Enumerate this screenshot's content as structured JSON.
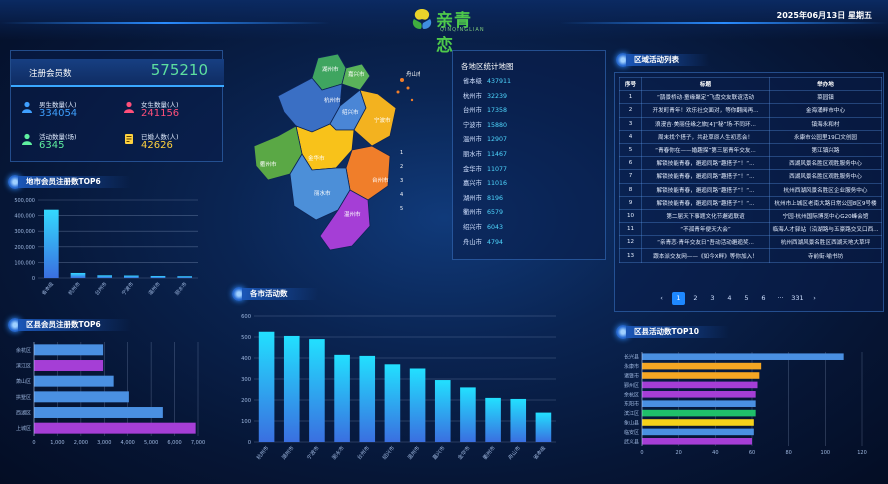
{
  "header": {
    "logo_text": "亲青恋",
    "logo_sub": "QINQINGLIAN",
    "datetime": "2025年06月13日 星期五"
  },
  "members": {
    "label": "注册会员数",
    "total": "575210",
    "stats": [
      {
        "label": "男生数量(人)",
        "value": "334054",
        "color": "#3fa0ff",
        "icon": "male-user-icon"
      },
      {
        "label": "女生数量(人)",
        "value": "241156",
        "color": "#ff4f7a",
        "icon": "female-user-icon"
      },
      {
        "label": "活动数量(场)",
        "value": "6345",
        "color": "#5ff0a0",
        "icon": "activity-user-icon"
      },
      {
        "label": "已婚人数(人)",
        "value": "42626",
        "color": "#ffd23f",
        "icon": "married-doc-icon"
      }
    ]
  },
  "sections": {
    "city_members": "地市会员注册数TOP6",
    "district_members": "区县会员注册数TOP6",
    "city_activity": "各市活动数",
    "region_activity_list": "区域活动列表",
    "district_activity": "区县活动数TOP10"
  },
  "map": {
    "title": "各地区统计地图",
    "cities": [
      {
        "name": "湖州市",
        "color": "#3fa560"
      },
      {
        "name": "嘉兴市",
        "color": "#5ab35a"
      },
      {
        "name": "杭州市",
        "color": "#3a6fc4"
      },
      {
        "name": "绍兴市",
        "color": "#4a86d6"
      },
      {
        "name": "宁波市",
        "color": "#f3b21f"
      },
      {
        "name": "金华市",
        "color": "#f8c21a"
      },
      {
        "name": "衢州市",
        "color": "#5aa845"
      },
      {
        "name": "台州市",
        "color": "#f07e2a"
      },
      {
        "name": "丽水市",
        "color": "#4c8fd8"
      },
      {
        "name": "温州市",
        "color": "#a53ed6"
      },
      {
        "name": "舟山市",
        "color": "#f07e2a"
      }
    ],
    "labels_extra": [
      "1",
      "2",
      "3",
      "4",
      "5"
    ],
    "stats": [
      {
        "city": "省本级",
        "value": "437911"
      },
      {
        "city": "杭州市",
        "value": "32239"
      },
      {
        "city": "台州市",
        "value": "17358"
      },
      {
        "city": "宁波市",
        "value": "15880"
      },
      {
        "city": "温州市",
        "value": "12907"
      },
      {
        "city": "丽水市",
        "value": "11467"
      },
      {
        "city": "金华市",
        "value": "11077"
      },
      {
        "city": "嘉兴市",
        "value": "11016"
      },
      {
        "city": "湖州市",
        "value": "8196"
      },
      {
        "city": "衢州市",
        "value": "6579"
      },
      {
        "city": "绍兴市",
        "value": "6043"
      },
      {
        "city": "舟山市",
        "value": "4794"
      }
    ]
  },
  "region_table": {
    "headers": [
      "序号",
      "标题",
      "举办地"
    ],
    "rows": [
      [
        "1",
        "“鹊景桥动·童缘聚定”飞盘交友联谊活动",
        "菜园镇"
      ],
      [
        "2",
        "开发町青年！欢乐社交面对，等你翻阅再...",
        "金海涌畔市中心"
      ],
      [
        "3",
        "浪漫吉·美丽佳缘之旅[4]“秘”场·不同环...",
        "镇海永和村"
      ],
      [
        "4",
        "周末找个搭子，共赴草原人生初恋会！",
        "永康市公园里19口文创园"
      ],
      [
        "5",
        "“青春你在——婚趣探”第三届青年交友...",
        "第江镇兴路"
      ],
      [
        "6",
        "解锁技能青春，邂逅同路“趣搭子”！“...",
        "西湖风景名胜区观胜服务中心"
      ],
      [
        "7",
        "解锁技能青春，邂逅同路“趣搭子”！“...",
        "西湖风景名胜区观胜服务中心"
      ],
      [
        "8",
        "解锁技能青春，邂逅同路“趣搭子”！“...",
        "杭州西湖风景名胜区企业服务中心"
      ],
      [
        "9",
        "解锁技能青春，邂逅同路“趣搭子”！“...",
        "杭州市上城区老南大路日常公园8区9号楼"
      ],
      [
        "10",
        "第二届天下事题文化节邂逅联谊",
        "宁园·杭州国际博览中心G20峰会馆"
      ],
      [
        "11",
        "“不孤青年便天大会”",
        "临海人才驿站（沿湖路与五豪路交叉口西..."
      ],
      [
        "12",
        "“亲青恋·青年交友日”吾动活动邂逅奖...",
        "杭州西湖风景名胜区西湖天地大草坪"
      ],
      [
        "13",
        "跟本派交友网——《如今X畔》等你加入！",
        "寺前街·喻书坊"
      ]
    ],
    "pager": [
      "‹",
      "1",
      "2",
      "3",
      "4",
      "5",
      "6",
      "···",
      "331",
      "›"
    ]
  },
  "chart_data": [
    {
      "type": "bar",
      "title": "地市会员注册数TOP6",
      "categories": [
        "省本级",
        "杭州市",
        "台州市",
        "宁波市",
        "温州市",
        "丽水市"
      ],
      "values": [
        437911,
        32239,
        17358,
        15880,
        12907,
        11467
      ],
      "ylim": [
        0,
        500000
      ],
      "yticks": [
        "0",
        "100,000",
        "200,000",
        "300,000",
        "400,000",
        "500,000"
      ],
      "xlabel": "",
      "ylabel": ""
    },
    {
      "type": "bar",
      "orientation": "horizontal",
      "title": "区县会员注册数TOP6",
      "categories": [
        "余杭区",
        "滨江区",
        "萧山区",
        "拱墅区",
        "西湖区",
        "上城区"
      ],
      "values": [
        2950,
        2950,
        3400,
        4050,
        5500,
        6900
      ],
      "colors": [
        "#4a90e2",
        "#a53ed6",
        "#4a90e2",
        "#4a90e2",
        "#4a90e2",
        "#a53ed6"
      ],
      "xlim": [
        0,
        7000
      ],
      "xticks": [
        "0",
        "1,000",
        "2,000",
        "3,000",
        "4,000",
        "5,000",
        "6,000",
        "7,000"
      ]
    },
    {
      "type": "bar",
      "title": "各市活动数",
      "categories": [
        "杭州市",
        "湖州市",
        "宁波市",
        "丽水市",
        "台州市",
        "绍兴市",
        "温州市",
        "嘉兴市",
        "金华市",
        "衢州市",
        "舟山市",
        "省本级"
      ],
      "values": [
        525,
        505,
        490,
        415,
        410,
        370,
        350,
        295,
        260,
        210,
        205,
        140
      ],
      "ylim": [
        0,
        600
      ],
      "yticks": [
        "0",
        "100",
        "200",
        "300",
        "400",
        "500",
        "600"
      ]
    },
    {
      "type": "bar",
      "orientation": "horizontal",
      "title": "区县活动数TOP10",
      "categories": [
        "长兴县",
        "永康市",
        "诸暨市",
        "鄞州区",
        "余杭区",
        "东阳市",
        "滨江区",
        "象山县",
        "临安区",
        "武义县"
      ],
      "values": [
        110,
        65,
        64,
        63,
        62,
        62,
        62,
        61,
        61,
        60
      ],
      "colors": [
        "#4a90e2",
        "#f5a623",
        "#f5a623",
        "#a53ed6",
        "#a53ed6",
        "#4a90e2",
        "#1fbf6a",
        "#f5d21a",
        "#4a90e2",
        "#a53ed6"
      ],
      "xlim": [
        0,
        120
      ],
      "xticks": [
        "0",
        "20",
        "40",
        "60",
        "80",
        "100",
        "120"
      ]
    }
  ]
}
